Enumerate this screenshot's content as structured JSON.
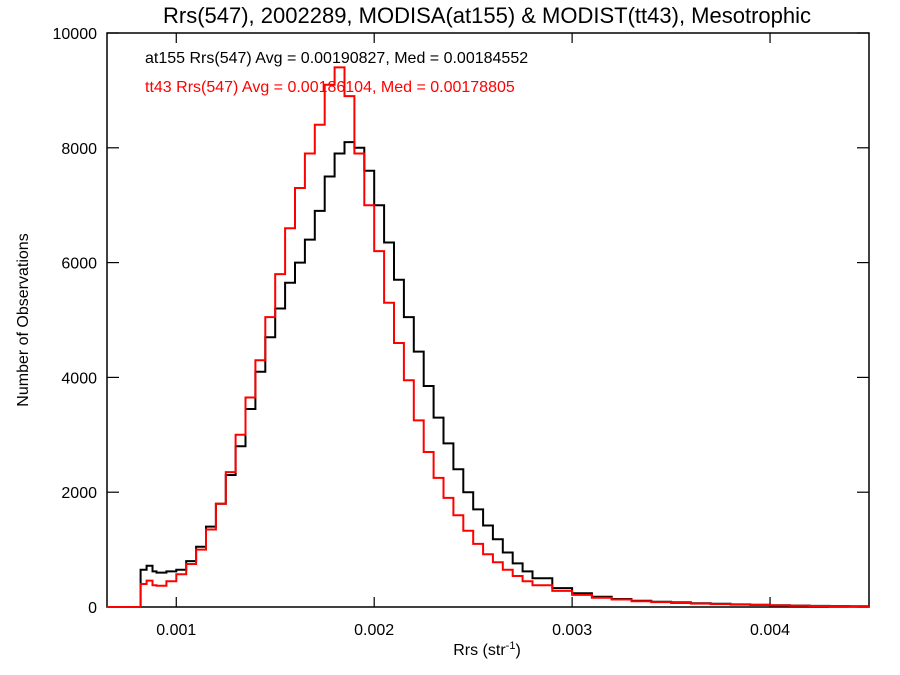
{
  "chart_data": {
    "type": "line",
    "title": "Rrs(547), 2002289, MODISA(at155) & MODIST(tt43), Mesotrophic",
    "xlabel_main": "Rrs (str",
    "xlabel_sup": "-1",
    "xlabel_close": ")",
    "ylabel": "Number of Observations",
    "xlim": [
      0.00065,
      0.0045
    ],
    "ylim": [
      0,
      10000
    ],
    "x_ticks": [
      {
        "value": 0.001,
        "label": "0.001"
      },
      {
        "value": 0.002,
        "label": "0.002"
      },
      {
        "value": 0.003,
        "label": "0.003"
      },
      {
        "value": 0.004,
        "label": "0.004"
      }
    ],
    "y_ticks": [
      {
        "value": 0,
        "label": "0"
      },
      {
        "value": 2000,
        "label": "2000"
      },
      {
        "value": 4000,
        "label": "4000"
      },
      {
        "value": 6000,
        "label": "6000"
      },
      {
        "value": 8000,
        "label": "8000"
      },
      {
        "value": 10000,
        "label": "10000"
      }
    ],
    "annotations": [
      {
        "text": "at155 Rrs(547) Avg = 0.00190827, Med = 0.00184552",
        "color": "#000000"
      },
      {
        "text": "tt43 Rrs(547) Avg = 0.00186104, Med = 0.00178805",
        "color": "#ff0000"
      }
    ],
    "series": [
      {
        "color": "#000000",
        "style": "step",
        "points": [
          [
            0.00065,
            0
          ],
          [
            0.0008,
            0
          ],
          [
            0.00082,
            650
          ],
          [
            0.00085,
            720
          ],
          [
            0.00088,
            620
          ],
          [
            0.0009,
            600
          ],
          [
            0.00095,
            620
          ],
          [
            0.001,
            650
          ],
          [
            0.00105,
            800
          ],
          [
            0.0011,
            1050
          ],
          [
            0.00115,
            1400
          ],
          [
            0.0012,
            1800
          ],
          [
            0.00125,
            2300
          ],
          [
            0.0013,
            2800
          ],
          [
            0.00135,
            3450
          ],
          [
            0.0014,
            4100
          ],
          [
            0.00145,
            4700
          ],
          [
            0.0015,
            5200
          ],
          [
            0.00155,
            5650
          ],
          [
            0.0016,
            6000
          ],
          [
            0.00165,
            6400
          ],
          [
            0.0017,
            6900
          ],
          [
            0.00175,
            7500
          ],
          [
            0.0018,
            7900
          ],
          [
            0.00185,
            8100
          ],
          [
            0.0019,
            8000
          ],
          [
            0.00195,
            7600
          ],
          [
            0.002,
            7000
          ],
          [
            0.00205,
            6350
          ],
          [
            0.0021,
            5700
          ],
          [
            0.00215,
            5050
          ],
          [
            0.0022,
            4450
          ],
          [
            0.00225,
            3850
          ],
          [
            0.0023,
            3300
          ],
          [
            0.00235,
            2850
          ],
          [
            0.0024,
            2400
          ],
          [
            0.00245,
            2000
          ],
          [
            0.0025,
            1700
          ],
          [
            0.00255,
            1420
          ],
          [
            0.0026,
            1180
          ],
          [
            0.00265,
            950
          ],
          [
            0.0027,
            760
          ],
          [
            0.00275,
            620
          ],
          [
            0.0028,
            500
          ],
          [
            0.0029,
            330
          ],
          [
            0.003,
            240
          ],
          [
            0.0031,
            180
          ],
          [
            0.0032,
            140
          ],
          [
            0.0033,
            110
          ],
          [
            0.0034,
            90
          ],
          [
            0.0035,
            80
          ],
          [
            0.0036,
            65
          ],
          [
            0.0037,
            55
          ],
          [
            0.0038,
            45
          ],
          [
            0.0039,
            38
          ],
          [
            0.004,
            30
          ],
          [
            0.0041,
            25
          ],
          [
            0.0042,
            20
          ],
          [
            0.0043,
            15
          ],
          [
            0.0044,
            12
          ],
          [
            0.0045,
            10
          ]
        ]
      },
      {
        "color": "#ff0000",
        "style": "step",
        "points": [
          [
            0.00065,
            0
          ],
          [
            0.0008,
            0
          ],
          [
            0.00082,
            400
          ],
          [
            0.00085,
            460
          ],
          [
            0.00088,
            380
          ],
          [
            0.0009,
            370
          ],
          [
            0.00095,
            450
          ],
          [
            0.001,
            570
          ],
          [
            0.00105,
            750
          ],
          [
            0.0011,
            1000
          ],
          [
            0.00115,
            1350
          ],
          [
            0.0012,
            1800
          ],
          [
            0.00125,
            2350
          ],
          [
            0.0013,
            3000
          ],
          [
            0.00135,
            3650
          ],
          [
            0.0014,
            4300
          ],
          [
            0.00145,
            5050
          ],
          [
            0.0015,
            5800
          ],
          [
            0.00155,
            6600
          ],
          [
            0.0016,
            7300
          ],
          [
            0.00165,
            7900
          ],
          [
            0.0017,
            8400
          ],
          [
            0.00175,
            9100
          ],
          [
            0.0018,
            9400
          ],
          [
            0.00185,
            8900
          ],
          [
            0.0019,
            7900
          ],
          [
            0.00195,
            7000
          ],
          [
            0.002,
            6200
          ],
          [
            0.00205,
            5300
          ],
          [
            0.0021,
            4600
          ],
          [
            0.00215,
            3950
          ],
          [
            0.0022,
            3250
          ],
          [
            0.00225,
            2700
          ],
          [
            0.0023,
            2250
          ],
          [
            0.00235,
            1900
          ],
          [
            0.0024,
            1600
          ],
          [
            0.00245,
            1330
          ],
          [
            0.0025,
            1100
          ],
          [
            0.00255,
            920
          ],
          [
            0.0026,
            780
          ],
          [
            0.00265,
            650
          ],
          [
            0.0027,
            540
          ],
          [
            0.00275,
            450
          ],
          [
            0.0028,
            380
          ],
          [
            0.0029,
            280
          ],
          [
            0.003,
            210
          ],
          [
            0.0031,
            160
          ],
          [
            0.0032,
            130
          ],
          [
            0.0033,
            100
          ],
          [
            0.0034,
            85
          ],
          [
            0.0035,
            70
          ],
          [
            0.0036,
            60
          ],
          [
            0.0037,
            50
          ],
          [
            0.0038,
            42
          ],
          [
            0.0039,
            35
          ],
          [
            0.004,
            28
          ],
          [
            0.0041,
            22
          ],
          [
            0.0042,
            18
          ],
          [
            0.0043,
            14
          ],
          [
            0.0044,
            10
          ],
          [
            0.0045,
            8
          ]
        ]
      }
    ]
  }
}
